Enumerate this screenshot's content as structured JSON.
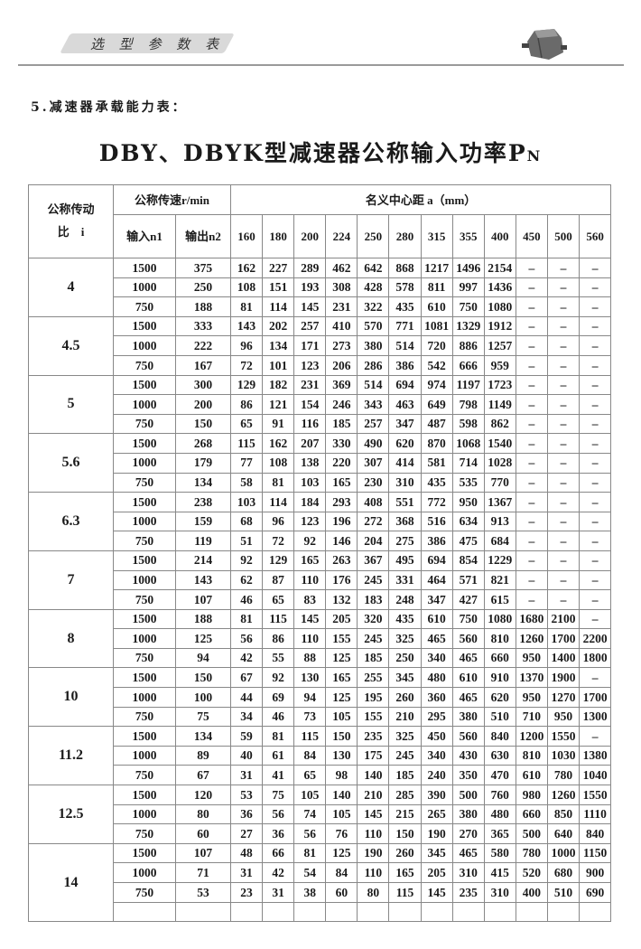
{
  "header": {
    "tab_label": "选 型 参 数 表",
    "logo": "gearbox-image"
  },
  "section_heading": "5.减速器承载能力表：",
  "title": {
    "main": "DBY、DBYK型减速器公称输入功率P",
    "sub": "N"
  },
  "table": {
    "ratio_header": [
      "公称传动",
      "比　i"
    ],
    "speed_header": "公称传速r/min",
    "n1_header": "输入n1",
    "n2_header": "输出n2",
    "distance_header": "名义中心距 a（mm）",
    "distances": [
      "160",
      "180",
      "200",
      "224",
      "250",
      "280",
      "315",
      "355",
      "400",
      "450",
      "500",
      "560"
    ],
    "groups": [
      {
        "ratio": "4",
        "rows": [
          [
            "1500",
            "375",
            "162",
            "227",
            "289",
            "462",
            "642",
            "868",
            "1217",
            "1496",
            "2154",
            "–",
            "–",
            "–"
          ],
          [
            "1000",
            "250",
            "108",
            "151",
            "193",
            "308",
            "428",
            "578",
            "811",
            "997",
            "1436",
            "–",
            "–",
            "–"
          ],
          [
            "750",
            "188",
            "81",
            "114",
            "145",
            "231",
            "322",
            "435",
            "610",
            "750",
            "1080",
            "–",
            "–",
            "–"
          ]
        ]
      },
      {
        "ratio": "4.5",
        "rows": [
          [
            "1500",
            "333",
            "143",
            "202",
            "257",
            "410",
            "570",
            "771",
            "1081",
            "1329",
            "1912",
            "–",
            "–",
            "–"
          ],
          [
            "1000",
            "222",
            "96",
            "134",
            "171",
            "273",
            "380",
            "514",
            "720",
            "886",
            "1257",
            "–",
            "–",
            "–"
          ],
          [
            "750",
            "167",
            "72",
            "101",
            "123",
            "206",
            "286",
            "386",
            "542",
            "666",
            "959",
            "–",
            "–",
            "–"
          ]
        ]
      },
      {
        "ratio": "5",
        "rows": [
          [
            "1500",
            "300",
            "129",
            "182",
            "231",
            "369",
            "514",
            "694",
            "974",
            "1197",
            "1723",
            "–",
            "–",
            "–"
          ],
          [
            "1000",
            "200",
            "86",
            "121",
            "154",
            "246",
            "343",
            "463",
            "649",
            "798",
            "1149",
            "–",
            "–",
            "–"
          ],
          [
            "750",
            "150",
            "65",
            "91",
            "116",
            "185",
            "257",
            "347",
            "487",
            "598",
            "862",
            "–",
            "–",
            "–"
          ]
        ]
      },
      {
        "ratio": "5.6",
        "rows": [
          [
            "1500",
            "268",
            "115",
            "162",
            "207",
            "330",
            "490",
            "620",
            "870",
            "1068",
            "1540",
            "–",
            "–",
            "–"
          ],
          [
            "1000",
            "179",
            "77",
            "108",
            "138",
            "220",
            "307",
            "414",
            "581",
            "714",
            "1028",
            "–",
            "–",
            "–"
          ],
          [
            "750",
            "134",
            "58",
            "81",
            "103",
            "165",
            "230",
            "310",
            "435",
            "535",
            "770",
            "–",
            "–",
            "–"
          ]
        ]
      },
      {
        "ratio": "6.3",
        "rows": [
          [
            "1500",
            "238",
            "103",
            "114",
            "184",
            "293",
            "408",
            "551",
            "772",
            "950",
            "1367",
            "–",
            "–",
            "–"
          ],
          [
            "1000",
            "159",
            "68",
            "96",
            "123",
            "196",
            "272",
            "368",
            "516",
            "634",
            "913",
            "–",
            "–",
            "–"
          ],
          [
            "750",
            "119",
            "51",
            "72",
            "92",
            "146",
            "204",
            "275",
            "386",
            "475",
            "684",
            "–",
            "–",
            "–"
          ]
        ]
      },
      {
        "ratio": "7",
        "rows": [
          [
            "1500",
            "214",
            "92",
            "129",
            "165",
            "263",
            "367",
            "495",
            "694",
            "854",
            "1229",
            "–",
            "–",
            "–"
          ],
          [
            "1000",
            "143",
            "62",
            "87",
            "110",
            "176",
            "245",
            "331",
            "464",
            "571",
            "821",
            "–",
            "–",
            "–"
          ],
          [
            "750",
            "107",
            "46",
            "65",
            "83",
            "132",
            "183",
            "248",
            "347",
            "427",
            "615",
            "–",
            "–",
            "–"
          ]
        ]
      },
      {
        "ratio": "8",
        "rows": [
          [
            "1500",
            "188",
            "81",
            "115",
            "145",
            "205",
            "320",
            "435",
            "610",
            "750",
            "1080",
            "1680",
            "2100",
            "–"
          ],
          [
            "1000",
            "125",
            "56",
            "86",
            "110",
            "155",
            "245",
            "325",
            "465",
            "560",
            "810",
            "1260",
            "1700",
            "2200"
          ],
          [
            "750",
            "94",
            "42",
            "55",
            "88",
            "125",
            "185",
            "250",
            "340",
            "465",
            "660",
            "950",
            "1400",
            "1800"
          ]
        ]
      },
      {
        "ratio": "10",
        "rows": [
          [
            "1500",
            "150",
            "67",
            "92",
            "130",
            "165",
            "255",
            "345",
            "480",
            "610",
            "910",
            "1370",
            "1900",
            "–"
          ],
          [
            "1000",
            "100",
            "44",
            "69",
            "94",
            "125",
            "195",
            "260",
            "360",
            "465",
            "620",
            "950",
            "1270",
            "1700"
          ],
          [
            "750",
            "75",
            "34",
            "46",
            "73",
            "105",
            "155",
            "210",
            "295",
            "380",
            "510",
            "710",
            "950",
            "1300"
          ]
        ]
      },
      {
        "ratio": "11.2",
        "rows": [
          [
            "1500",
            "134",
            "59",
            "81",
            "115",
            "150",
            "235",
            "325",
            "450",
            "560",
            "840",
            "1200",
            "1550",
            "–"
          ],
          [
            "1000",
            "89",
            "40",
            "61",
            "84",
            "130",
            "175",
            "245",
            "340",
            "430",
            "630",
            "810",
            "1030",
            "1380"
          ],
          [
            "750",
            "67",
            "31",
            "41",
            "65",
            "98",
            "140",
            "185",
            "240",
            "350",
            "470",
            "610",
            "780",
            "1040"
          ]
        ]
      },
      {
        "ratio": "12.5",
        "rows": [
          [
            "1500",
            "120",
            "53",
            "75",
            "105",
            "140",
            "210",
            "285",
            "390",
            "500",
            "760",
            "980",
            "1260",
            "1550"
          ],
          [
            "1000",
            "80",
            "36",
            "56",
            "74",
            "105",
            "145",
            "215",
            "265",
            "380",
            "480",
            "660",
            "850",
            "1110"
          ],
          [
            "750",
            "60",
            "27",
            "36",
            "56",
            "76",
            "110",
            "150",
            "190",
            "270",
            "365",
            "500",
            "640",
            "840"
          ]
        ]
      },
      {
        "ratio": "14",
        "rows": [
          [
            "1500",
            "107",
            "48",
            "66",
            "81",
            "125",
            "190",
            "260",
            "345",
            "465",
            "580",
            "780",
            "1000",
            "1150"
          ],
          [
            "1000",
            "71",
            "31",
            "42",
            "54",
            "84",
            "110",
            "165",
            "205",
            "310",
            "415",
            "520",
            "680",
            "900"
          ],
          [
            "750",
            "53",
            "23",
            "31",
            "38",
            "60",
            "80",
            "115",
            "145",
            "235",
            "310",
            "400",
            "510",
            "690"
          ],
          [
            "",
            "",
            "",
            "",
            "",
            "",
            "",
            "",
            "",
            "",
            "",
            "",
            "",
            ""
          ]
        ]
      }
    ]
  }
}
